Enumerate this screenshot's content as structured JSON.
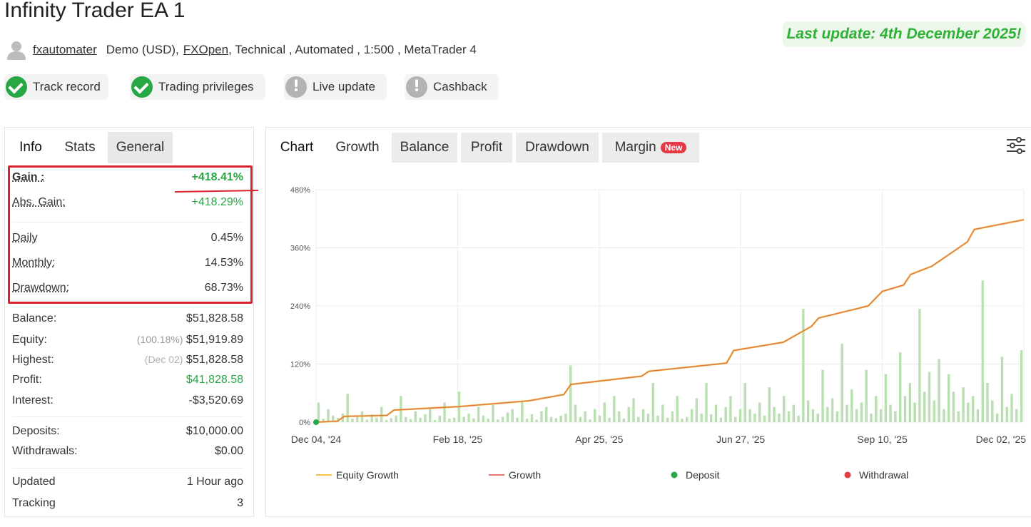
{
  "header": {
    "title": "Infinity Trader EA 1",
    "last_update": "Last update: 4th December 2025!",
    "author": "fxautomater",
    "account": "Demo (USD),",
    "broker": "FXOpen",
    "details": ", Technical , Automated , 1:500 , MetaTrader 4"
  },
  "badges": [
    {
      "label": "Track record",
      "icon": "check-icon",
      "color": "#27a844"
    },
    {
      "label": "Trading privileges",
      "icon": "check-icon",
      "color": "#27a844"
    },
    {
      "label": "Live update",
      "icon": "exclamation-icon",
      "color": "#b3b3b3"
    },
    {
      "label": "Cashback",
      "icon": "exclamation-icon",
      "color": "#b3b3b3"
    }
  ],
  "left_tabs": [
    "Info",
    "Stats",
    "General"
  ],
  "stats_highlight": [
    {
      "label": "Gain :",
      "value": "+418.41%"
    },
    {
      "label": "Abs. Gain:",
      "value": "+418.29%"
    },
    {
      "label": "Daily",
      "value": "0.45%"
    },
    {
      "label": "Monthly:",
      "value": "14.53%"
    },
    {
      "label": "Drawdown:",
      "value": "68.73%"
    }
  ],
  "stats_account": [
    {
      "label": "Balance:",
      "note": "",
      "value": "$51,828.58"
    },
    {
      "label": "Equity:",
      "note": "(100.18%)",
      "value": "$51,919.89"
    },
    {
      "label": "Highest:",
      "note": "(Dec 02)",
      "value": "$51,828.58"
    },
    {
      "label": "Profit:",
      "note": "",
      "value": "$41,828.58"
    },
    {
      "label": "Interest:",
      "note": "",
      "value": "-$3,520.69"
    }
  ],
  "stats_deposits": [
    {
      "label": "Deposits:",
      "value": "$10,000.00"
    },
    {
      "label": "Withdrawals:",
      "value": "$0.00"
    }
  ],
  "stats_tracking": [
    {
      "label": "Updated",
      "value": "1 Hour ago"
    },
    {
      "label": "Tracking",
      "value": "3"
    }
  ],
  "chart_tabs": {
    "chart": "Chart",
    "items": [
      "Growth",
      "Balance",
      "Profit",
      "Drawdown",
      "Margin"
    ],
    "new_badge": "New"
  },
  "chart_data": {
    "type": "line",
    "x_labels": [
      "Dec 04, '24",
      "Feb 18, '25",
      "Apr 25, '25",
      "Jun 27, '25",
      "Sep 10, '25",
      "Dec 02, '25"
    ],
    "y_ticks": [
      "0%",
      "120%",
      "240%",
      "360%",
      "480%"
    ],
    "ylim": [
      0,
      480
    ],
    "grid": true,
    "legend_position": "bottom",
    "legend": [
      {
        "name": "Equity Growth",
        "color": "#f5c542",
        "marker": "line"
      },
      {
        "name": "Growth",
        "color": "#e8796f",
        "marker": "line"
      },
      {
        "name": "Deposit",
        "color": "#27a844",
        "marker": "dot"
      },
      {
        "name": "Withdrawal",
        "color": "#e04040",
        "marker": "dot"
      }
    ],
    "series": [
      {
        "name": "Growth",
        "color": "#e07b3f",
        "points": [
          [
            0,
            0
          ],
          [
            0.03,
            2
          ],
          [
            0.04,
            12
          ],
          [
            0.1,
            14
          ],
          [
            0.11,
            25
          ],
          [
            0.2,
            32
          ],
          [
            0.3,
            44
          ],
          [
            0.35,
            57
          ],
          [
            0.36,
            78
          ],
          [
            0.46,
            95
          ],
          [
            0.47,
            105
          ],
          [
            0.58,
            122
          ],
          [
            0.59,
            148
          ],
          [
            0.66,
            165
          ],
          [
            0.7,
            198
          ],
          [
            0.71,
            215
          ],
          [
            0.78,
            240
          ],
          [
            0.8,
            270
          ],
          [
            0.83,
            283
          ],
          [
            0.84,
            305
          ],
          [
            0.87,
            322
          ],
          [
            0.92,
            372
          ],
          [
            0.93,
            398
          ],
          [
            1.0,
            418
          ]
        ]
      }
    ],
    "daily_bars": [
      45,
      8,
      30,
      15,
      10,
      20,
      65,
      8,
      12,
      25,
      6,
      18,
      10,
      35,
      5,
      9,
      15,
      60,
      12,
      7,
      25,
      10,
      18,
      30,
      5,
      15,
      45,
      8,
      10,
      70,
      12,
      20,
      9,
      35,
      15,
      8,
      40,
      6,
      12,
      22,
      30,
      10,
      50,
      8,
      18,
      6,
      25,
      35,
      12,
      9,
      15,
      20,
      130,
      40,
      12,
      25,
      6,
      30,
      15,
      45,
      10,
      60,
      25,
      8,
      35,
      55,
      12,
      30,
      20,
      90,
      15,
      40,
      10,
      25,
      60,
      8,
      12,
      30,
      55,
      20,
      90,
      18,
      40,
      10,
      35,
      60,
      12,
      30,
      90,
      30,
      20,
      45,
      15,
      80,
      35,
      20,
      60,
      25,
      40,
      15,
      260,
      50,
      30,
      20,
      120,
      35,
      55,
      25,
      180,
      40,
      75,
      30,
      45,
      120,
      20,
      60,
      30,
      110,
      40,
      25,
      160,
      60,
      90,
      45,
      260,
      70,
      115,
      50,
      145,
      30,
      110,
      70,
      25,
      80,
      45,
      60,
      30,
      325,
      90,
      50,
      20,
      150,
      35,
      65,
      30,
      165
    ]
  }
}
